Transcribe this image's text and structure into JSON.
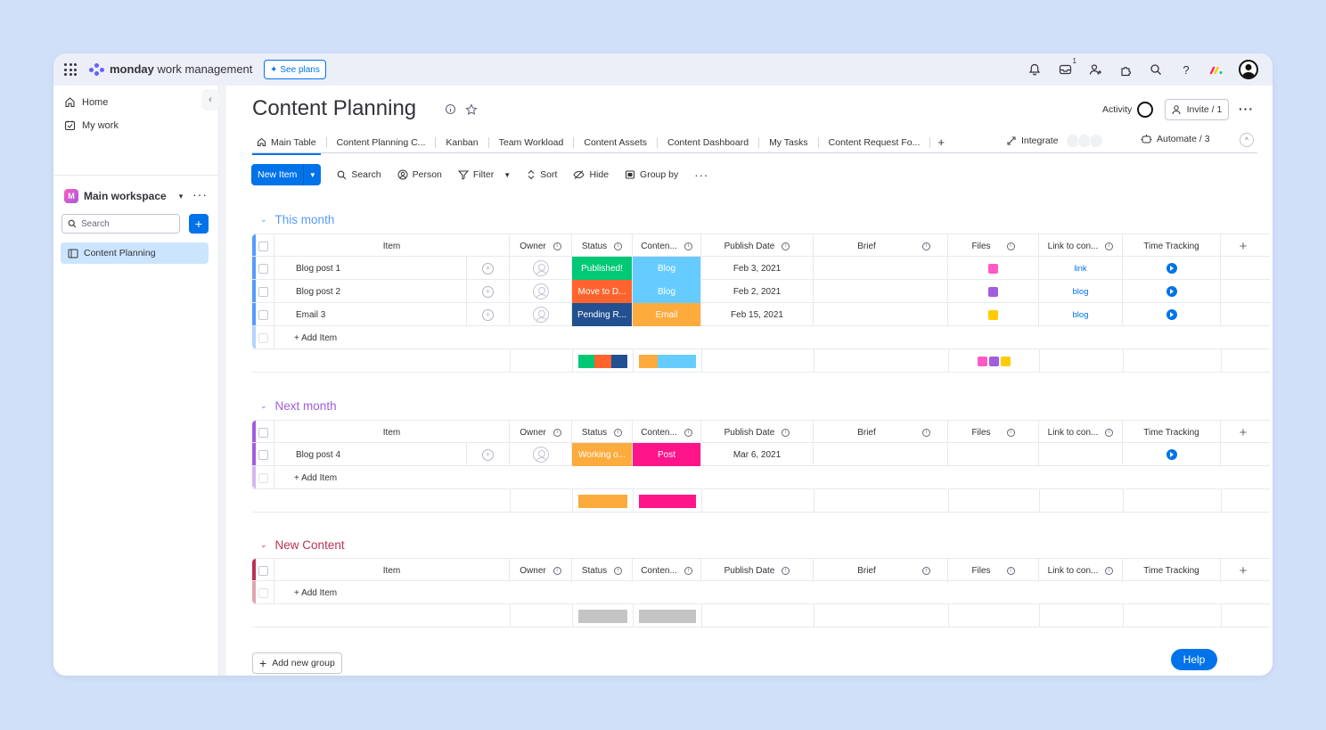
{
  "topbar": {
    "brand_bold": "monday",
    "brand_rest": " work management",
    "see_plans": "See plans",
    "inbox_badge": "1"
  },
  "sidebar": {
    "home": "Home",
    "my_work": "My work",
    "workspace_initial": "M",
    "workspace": "Main workspace",
    "search_placeholder": "Search",
    "board": "Content Planning"
  },
  "board": {
    "title": "Content Planning",
    "activity": "Activity",
    "invite": "Invite / 1",
    "tabs": [
      "Main Table",
      "Content Planning C...",
      "Kanban",
      "Team Workload",
      "Content Assets",
      "Content Dashboard",
      "My Tasks",
      "Content Request Fo..."
    ],
    "integrate": "Integrate",
    "automate": "Automate / 3"
  },
  "toolbar": {
    "new_item": "New Item",
    "search": "Search",
    "person": "Person",
    "filter": "Filter",
    "sort": "Sort",
    "hide": "Hide",
    "group_by": "Group by"
  },
  "columns": {
    "item": "Item",
    "owner": "Owner",
    "status": "Status",
    "content": "Conten...",
    "publish_date": "Publish Date",
    "brief": "Brief",
    "files": "Files",
    "link": "Link to con...",
    "time": "Time Tracking"
  },
  "groups": [
    {
      "name": "This month",
      "color": "#579bfc",
      "rows": [
        {
          "item": "Blog post 1",
          "status": "Published!",
          "status_color": "#00c875",
          "content": "Blog",
          "content_color": "#66ccff",
          "date": "Feb 3, 2021",
          "link": "link",
          "file_color": "#ff5ac4"
        },
        {
          "item": "Blog post 2",
          "status": "Move to D...",
          "status_color": "#ff642e",
          "content": "Blog",
          "content_color": "#66ccff",
          "date": "Feb 2, 2021",
          "link": "blog",
          "file_color": "#a25ddc"
        },
        {
          "item": "Email 3",
          "status": "Pending R...",
          "status_color": "#225091",
          "content": "Email",
          "content_color": "#fdab3d",
          "date": "Feb 15, 2021",
          "link": "blog",
          "file_color": "#ffcb00"
        }
      ],
      "add_item": "+ Add Item"
    },
    {
      "name": "Next month",
      "color": "#a25ddc",
      "rows": [
        {
          "item": "Blog post 4",
          "status": "Working o...",
          "status_color": "#fdab3d",
          "content": "Post",
          "content_color": "#ff158a",
          "date": "Mar 6, 2021",
          "link": "",
          "file_color": ""
        }
      ],
      "add_item": "+ Add Item"
    },
    {
      "name": "New Content",
      "color": "#bb3354",
      "rows": [],
      "add_item": "+ Add Item"
    }
  ],
  "add_group": "Add new group",
  "help": "Help"
}
